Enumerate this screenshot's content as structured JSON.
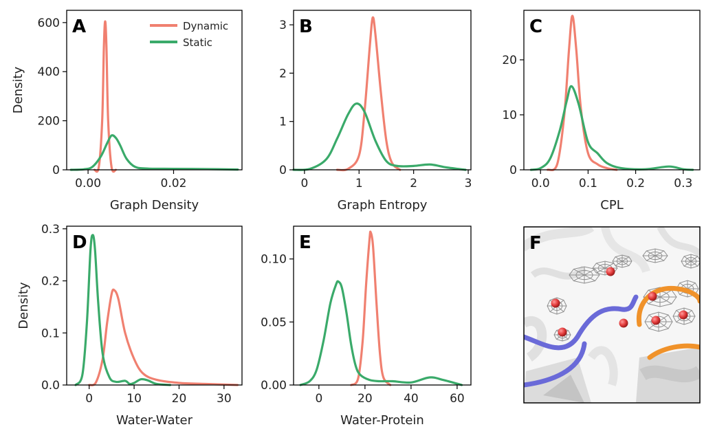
{
  "colors": {
    "dynamic": "#f08070",
    "static": "#3aaa6a"
  },
  "legend": {
    "dynamic": "Dynamic",
    "static": "Static"
  },
  "panels": {
    "A": {
      "letter": "A"
    },
    "B": {
      "letter": "B"
    },
    "C": {
      "letter": "C"
    },
    "D": {
      "letter": "D"
    },
    "E": {
      "letter": "E"
    },
    "F": {
      "letter": "F"
    }
  },
  "chart_data": [
    {
      "id": "A",
      "type": "line",
      "xlabel": "Graph Density",
      "ylabel": "Density",
      "xlim": [
        -0.005,
        0.036
      ],
      "ylim": [
        0,
        650
      ],
      "xticks": [
        0.0,
        0.02
      ],
      "xtick_labels": [
        "0.00",
        "0.02"
      ],
      "yticks": [
        0,
        200,
        400,
        600
      ],
      "ytick_labels": [
        "0",
        "200",
        "400",
        "600"
      ],
      "legend": "top-right",
      "series": [
        {
          "name": "Dynamic",
          "color": "dynamic",
          "x": [
            0.0015,
            0.0025,
            0.0033,
            0.0037,
            0.004,
            0.0043,
            0.0047,
            0.0055,
            0.0065
          ],
          "y": [
            0,
            10,
            200,
            500,
            605,
            500,
            200,
            10,
            0
          ]
        },
        {
          "name": "Static",
          "color": "static",
          "x": [
            -0.004,
            -0.001,
            0.001,
            0.003,
            0.0045,
            0.0055,
            0.0065,
            0.0075,
            0.009,
            0.011,
            0.014,
            0.02,
            0.028,
            0.035
          ],
          "y": [
            0,
            2,
            12,
            55,
            110,
            140,
            130,
            100,
            45,
            12,
            5,
            4,
            3,
            1
          ]
        }
      ]
    },
    {
      "id": "B",
      "type": "line",
      "xlabel": "Graph Entropy",
      "ylabel": "",
      "xlim": [
        -0.2,
        3.05
      ],
      "ylim": [
        0,
        3.3
      ],
      "xticks": [
        0,
        1,
        2,
        3
      ],
      "xtick_labels": [
        "0",
        "1",
        "2",
        "3"
      ],
      "yticks": [
        0,
        1,
        2,
        3
      ],
      "ytick_labels": [
        "0",
        "1",
        "2",
        "3"
      ],
      "series": [
        {
          "name": "Dynamic",
          "color": "dynamic",
          "x": [
            0.6,
            0.8,
            1.0,
            1.1,
            1.2,
            1.25,
            1.3,
            1.4,
            1.5,
            1.6,
            1.75
          ],
          "y": [
            0,
            0.02,
            0.3,
            1.2,
            2.6,
            3.15,
            2.8,
            1.6,
            0.6,
            0.15,
            0
          ]
        },
        {
          "name": "Static",
          "color": "static",
          "x": [
            -0.2,
            0.1,
            0.4,
            0.6,
            0.8,
            0.95,
            1.1,
            1.3,
            1.5,
            1.7,
            2.0,
            2.3,
            2.6,
            2.95
          ],
          "y": [
            0,
            0.02,
            0.22,
            0.65,
            1.15,
            1.37,
            1.2,
            0.6,
            0.18,
            0.08,
            0.08,
            0.11,
            0.05,
            0
          ]
        }
      ]
    },
    {
      "id": "C",
      "type": "line",
      "xlabel": "CPL",
      "ylabel": "",
      "xlim": [
        -0.035,
        0.335
      ],
      "ylim": [
        0,
        29
      ],
      "xticks": [
        0.0,
        0.1,
        0.2,
        0.3
      ],
      "xtick_labels": [
        "0.0",
        "0.1",
        "0.2",
        "0.3"
      ],
      "yticks": [
        0,
        10,
        20
      ],
      "ytick_labels": [
        "0",
        "10",
        "20"
      ],
      "series": [
        {
          "name": "Dynamic",
          "color": "dynamic",
          "x": [
            0.015,
            0.035,
            0.05,
            0.06,
            0.067,
            0.075,
            0.085,
            0.1,
            0.12,
            0.14,
            0.16
          ],
          "y": [
            0,
            1,
            10,
            22,
            28,
            22,
            11,
            3,
            1,
            0.3,
            0
          ]
        },
        {
          "name": "Static",
          "color": "static",
          "x": [
            -0.02,
            0.0,
            0.02,
            0.04,
            0.055,
            0.065,
            0.08,
            0.1,
            0.12,
            0.14,
            0.17,
            0.22,
            0.27,
            0.3,
            0.32
          ],
          "y": [
            0,
            0.3,
            2,
            7,
            12.5,
            15.2,
            12,
            5,
            3,
            1.2,
            0.3,
            0.1,
            0.6,
            0.1,
            0
          ]
        }
      ]
    },
    {
      "id": "D",
      "type": "line",
      "xlabel": "Water-Water",
      "ylabel": "Density",
      "xlim": [
        -5,
        34
      ],
      "ylim": [
        0,
        0.305
      ],
      "xticks": [
        0,
        10,
        20,
        30
      ],
      "xtick_labels": [
        "0",
        "10",
        "20",
        "30"
      ],
      "yticks": [
        0,
        0.1,
        0.2,
        0.3
      ],
      "ytick_labels": [
        "0.0",
        "0.1",
        "0.2",
        "0.3"
      ],
      "series": [
        {
          "name": "Dynamic",
          "color": "dynamic",
          "x": [
            0,
            1.5,
            3,
            4,
            5,
            5.6,
            6.5,
            8,
            10,
            12,
            15,
            20,
            26,
            33
          ],
          "y": [
            0,
            0.005,
            0.05,
            0.12,
            0.175,
            0.182,
            0.165,
            0.1,
            0.05,
            0.022,
            0.01,
            0.004,
            0.002,
            0
          ]
        },
        {
          "name": "Static",
          "color": "static",
          "x": [
            -3,
            -1.5,
            -0.5,
            0.3,
            0.8,
            1.3,
            2,
            3,
            4.5,
            6,
            8,
            9,
            10,
            11.5,
            13,
            15,
            18
          ],
          "y": [
            0,
            0.02,
            0.12,
            0.26,
            0.288,
            0.26,
            0.16,
            0.06,
            0.015,
            0.006,
            0.008,
            0.002,
            0.004,
            0.011,
            0.009,
            0.002,
            0
          ]
        }
      ]
    },
    {
      "id": "E",
      "type": "line",
      "xlabel": "Water-Protein",
      "ylabel": "",
      "xlim": [
        -11,
        66
      ],
      "ylim": [
        0,
        0.126
      ],
      "xticks": [
        0,
        20,
        40,
        60
      ],
      "xtick_labels": [
        "0",
        "20",
        "40",
        "60"
      ],
      "yticks": [
        0.0,
        0.05,
        0.1
      ],
      "ytick_labels": [
        "0.00",
        "0.05",
        "0.10"
      ],
      "series": [
        {
          "name": "Dynamic",
          "color": "dynamic",
          "x": [
            14,
            17,
            19,
            20.5,
            22,
            22.5,
            23.5,
            25,
            26.5,
            28,
            31
          ],
          "y": [
            0,
            0.005,
            0.035,
            0.08,
            0.116,
            0.121,
            0.11,
            0.065,
            0.025,
            0.006,
            0
          ]
        },
        {
          "name": "Static",
          "color": "static",
          "x": [
            -8,
            -4,
            -1,
            2,
            5,
            7.5,
            8.5,
            10,
            12,
            14,
            16,
            18,
            22,
            26,
            32,
            40,
            48,
            54,
            62
          ],
          "y": [
            0,
            0.003,
            0.012,
            0.035,
            0.065,
            0.08,
            0.082,
            0.077,
            0.057,
            0.032,
            0.015,
            0.008,
            0.004,
            0.003,
            0.003,
            0.002,
            0.006,
            0.004,
            0
          ]
        }
      ]
    }
  ]
}
